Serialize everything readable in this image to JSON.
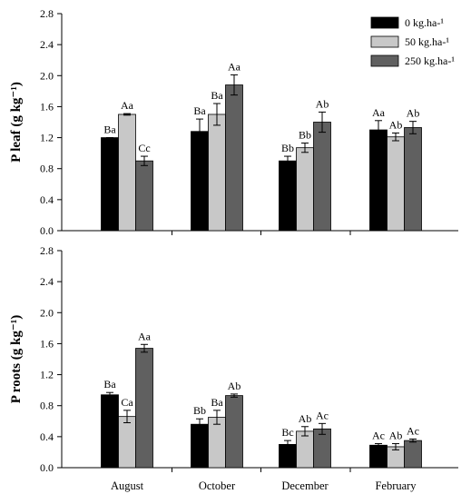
{
  "chart_data": [
    {
      "type": "bar",
      "ylabel": "P leaf (g kg⁻¹)",
      "ylim": [
        0,
        2.8
      ],
      "yticks": [
        "0.0",
        "0.4",
        "0.8",
        "1.2",
        "1.6",
        "2.0",
        "2.4",
        "2.8"
      ],
      "categories": [
        "August",
        "October",
        "December",
        "February"
      ],
      "series": [
        {
          "name": "0 kg.ha-¹",
          "color": "#000000",
          "values": [
            1.2,
            1.28,
            0.9,
            1.3
          ],
          "errors": [
            0.0,
            0.16,
            0.06,
            0.12
          ],
          "labels": [
            "Ba",
            "Ba",
            "Bb",
            "Aa"
          ]
        },
        {
          "name": "50 kg.ha-¹",
          "color": "#c8c8c8",
          "values": [
            1.5,
            1.5,
            1.07,
            1.21
          ],
          "errors": [
            0.01,
            0.14,
            0.06,
            0.05
          ],
          "labels": [
            "Aa",
            "Ba",
            "Bb",
            "Ab"
          ]
        },
        {
          "name": "250 kg.ha-¹",
          "color": "#606060",
          "values": [
            0.9,
            1.88,
            1.4,
            1.33
          ],
          "errors": [
            0.06,
            0.13,
            0.13,
            0.08
          ],
          "labels": [
            "Cc",
            "Aa",
            "Ab",
            "Ab"
          ]
        }
      ],
      "legend": "top-right"
    },
    {
      "type": "bar",
      "ylabel": "P roots (g kg⁻¹)",
      "ylim": [
        0,
        2.8
      ],
      "yticks": [
        "0.0",
        "0.4",
        "0.8",
        "1.2",
        "1.6",
        "2.0",
        "2.4",
        "2.8"
      ],
      "categories": [
        "August",
        "October",
        "December",
        "February"
      ],
      "series": [
        {
          "name": "0 kg.ha-¹",
          "color": "#000000",
          "values": [
            0.94,
            0.56,
            0.3,
            0.29
          ],
          "errors": [
            0.03,
            0.07,
            0.05,
            0.02
          ],
          "labels": [
            "Ba",
            "Bb",
            "Bc",
            "Ac"
          ]
        },
        {
          "name": "50 kg.ha-¹",
          "color": "#c8c8c8",
          "values": [
            0.66,
            0.65,
            0.47,
            0.27
          ],
          "errors": [
            0.08,
            0.09,
            0.06,
            0.04
          ],
          "labels": [
            "Ca",
            "Ba",
            "Ab",
            "Ab"
          ]
        },
        {
          "name": "250 kg.ha-¹",
          "color": "#606060",
          "values": [
            1.54,
            0.93,
            0.5,
            0.35
          ],
          "errors": [
            0.05,
            0.02,
            0.07,
            0.02
          ],
          "labels": [
            "Aa",
            "Ab",
            "Ac",
            "Ac"
          ]
        }
      ]
    }
  ]
}
